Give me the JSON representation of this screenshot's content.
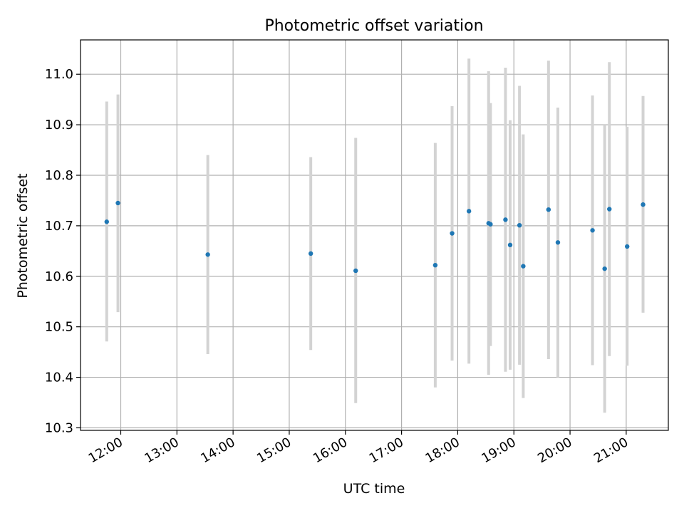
{
  "chart_data": {
    "type": "scatter",
    "title": "Photometric offset variation",
    "xlabel": "UTC time",
    "ylabel": "Photometric offset",
    "x_tick_labels": [
      "12:00",
      "13:00",
      "14:00",
      "15:00",
      "16:00",
      "17:00",
      "18:00",
      "19:00",
      "20:00",
      "21:00"
    ],
    "y_tick_labels": [
      "10.3",
      "10.4",
      "10.5",
      "10.6",
      "10.7",
      "10.8",
      "10.9",
      "11.0"
    ],
    "xlim": [
      "11:17",
      "21:45"
    ],
    "ylim": [
      10.295,
      11.068
    ],
    "grid": true,
    "colors": {
      "points": "#1f77b4",
      "error_bars": "#d3d3d3",
      "grid": "#b0b0b0"
    },
    "points": [
      {
        "x": "11:45",
        "y": 10.708,
        "yerr_low": 10.471,
        "yerr_high": 10.946
      },
      {
        "x": "11:57",
        "y": 10.745,
        "yerr_low": 10.529,
        "yerr_high": 10.96
      },
      {
        "x": "13:33",
        "y": 10.643,
        "yerr_low": 10.446,
        "yerr_high": 10.84
      },
      {
        "x": "15:23",
        "y": 10.645,
        "yerr_low": 10.454,
        "yerr_high": 10.836
      },
      {
        "x": "16:11",
        "y": 10.611,
        "yerr_low": 10.349,
        "yerr_high": 10.874
      },
      {
        "x": "17:36",
        "y": 10.622,
        "yerr_low": 10.38,
        "yerr_high": 10.864
      },
      {
        "x": "17:54",
        "y": 10.685,
        "yerr_low": 10.433,
        "yerr_high": 10.937
      },
      {
        "x": "18:12",
        "y": 10.729,
        "yerr_low": 10.427,
        "yerr_high": 11.031
      },
      {
        "x": "18:33",
        "y": 10.705,
        "yerr_low": 10.405,
        "yerr_high": 11.006
      },
      {
        "x": "18:35",
        "y": 10.703,
        "yerr_low": 10.462,
        "yerr_high": 10.943
      },
      {
        "x": "18:51",
        "y": 10.712,
        "yerr_low": 10.411,
        "yerr_high": 11.013
      },
      {
        "x": "18:56",
        "y": 10.662,
        "yerr_low": 10.415,
        "yerr_high": 10.909
      },
      {
        "x": "19:06",
        "y": 10.701,
        "yerr_low": 10.425,
        "yerr_high": 10.977
      },
      {
        "x": "19:10",
        "y": 10.62,
        "yerr_low": 10.359,
        "yerr_high": 10.881
      },
      {
        "x": "19:37",
        "y": 10.732,
        "yerr_low": 10.436,
        "yerr_high": 11.027
      },
      {
        "x": "19:47",
        "y": 10.667,
        "yerr_low": 10.4,
        "yerr_high": 10.934
      },
      {
        "x": "20:24",
        "y": 10.691,
        "yerr_low": 10.424,
        "yerr_high": 10.958
      },
      {
        "x": "20:37",
        "y": 10.615,
        "yerr_low": 10.33,
        "yerr_high": 10.9
      },
      {
        "x": "20:42",
        "y": 10.733,
        "yerr_low": 10.442,
        "yerr_high": 11.024
      },
      {
        "x": "21:01",
        "y": 10.659,
        "yerr_low": 10.423,
        "yerr_high": 10.896
      },
      {
        "x": "21:18",
        "y": 10.742,
        "yerr_low": 10.528,
        "yerr_high": 10.957
      }
    ]
  }
}
